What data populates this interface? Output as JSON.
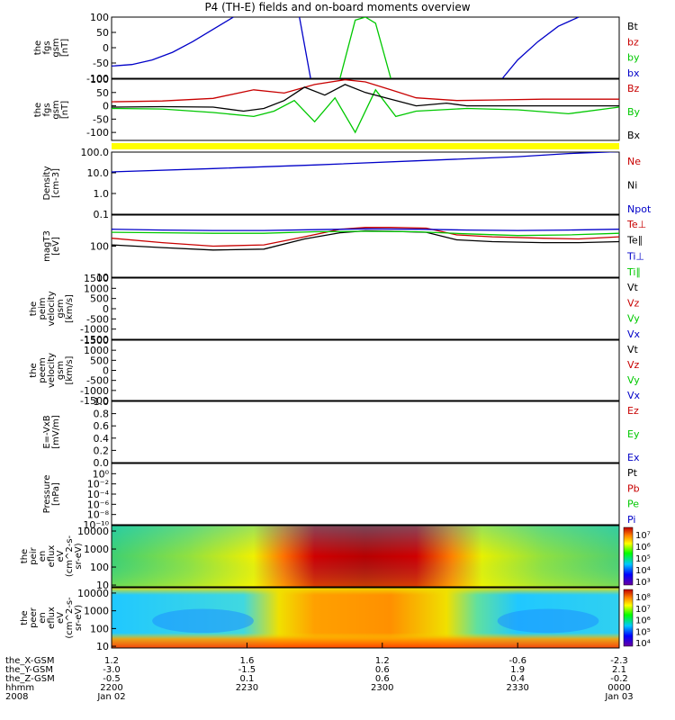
{
  "title": "P4 (TH-E) fields and on-board moments overview",
  "colors": {
    "black": "#000000",
    "red": "#c80000",
    "green": "#00c800",
    "blue": "#0000c8",
    "yellow": "#ffff00"
  },
  "chart_data": [
    {
      "type": "line",
      "id": "fgs",
      "ylabel": [
        "the",
        "fgs",
        "gsm",
        "[nT]"
      ],
      "ylim": [
        -100,
        100
      ],
      "yticks": [
        "100",
        "50",
        "0",
        "-50",
        "-100"
      ],
      "yticks_v": [
        100,
        50,
        0,
        -50,
        -100
      ],
      "legend": [
        {
          "name": "Bt",
          "color": "#000000"
        },
        {
          "name": "bz",
          "color": "#c80000"
        },
        {
          "name": "by",
          "color": "#00c800"
        },
        {
          "name": "bx",
          "color": "#0000c8"
        }
      ],
      "series": [
        {
          "name": "bx",
          "color": "#0000c8",
          "points": [
            [
              0,
              -60
            ],
            [
              0.04,
              -55
            ],
            [
              0.08,
              -40
            ],
            [
              0.12,
              -15
            ],
            [
              0.16,
              20
            ],
            [
              0.2,
              60
            ],
            [
              0.24,
              100
            ]
          ]
        },
        {
          "name": "bx",
          "color": "#0000c8",
          "points": [
            [
              0.37,
              100
            ],
            [
              0.392,
              -100
            ]
          ]
        },
        {
          "name": "by",
          "color": "#00c800",
          "points": [
            [
              0.45,
              -100
            ],
            [
              0.48,
              90
            ],
            [
              0.5,
              100
            ],
            [
              0.52,
              80
            ],
            [
              0.55,
              -100
            ]
          ]
        },
        {
          "name": "bx",
          "color": "#0000c8",
          "points": [
            [
              0.77,
              -100
            ],
            [
              0.8,
              -40
            ],
            [
              0.84,
              20
            ],
            [
              0.88,
              70
            ],
            [
              0.92,
              100
            ]
          ]
        }
      ]
    },
    {
      "type": "line",
      "id": "fgs-gse",
      "ylabel": [
        "the",
        "fgs",
        "gsm",
        "[nT]"
      ],
      "ylim": [
        -130,
        100
      ],
      "yticks": [
        "100",
        "50",
        "0",
        "-50",
        "-100"
      ],
      "yticks_v": [
        100,
        50,
        0,
        -50,
        -100
      ],
      "legend": [
        {
          "name": "Bz",
          "color": "#c80000"
        },
        {
          "name": "By",
          "color": "#00c800"
        },
        {
          "name": "Bx",
          "color": "#000000"
        }
      ],
      "series": [
        {
          "name": "Bz",
          "color": "#c80000",
          "points": [
            [
              0,
              15
            ],
            [
              0.1,
              18
            ],
            [
              0.2,
              28
            ],
            [
              0.28,
              60
            ],
            [
              0.34,
              48
            ],
            [
              0.4,
              80
            ],
            [
              0.46,
              98
            ],
            [
              0.5,
              90
            ],
            [
              0.55,
              60
            ],
            [
              0.6,
              30
            ],
            [
              0.68,
              20
            ],
            [
              0.75,
              22
            ],
            [
              0.85,
              25
            ],
            [
              1,
              25
            ]
          ]
        },
        {
          "name": "By",
          "color": "#00c800",
          "points": [
            [
              0,
              -10
            ],
            [
              0.1,
              -12
            ],
            [
              0.2,
              -25
            ],
            [
              0.28,
              -40
            ],
            [
              0.32,
              -20
            ],
            [
              0.36,
              20
            ],
            [
              0.4,
              -60
            ],
            [
              0.44,
              30
            ],
            [
              0.48,
              -100
            ],
            [
              0.52,
              60
            ],
            [
              0.56,
              -40
            ],
            [
              0.6,
              -20
            ],
            [
              0.7,
              -10
            ],
            [
              0.8,
              -15
            ],
            [
              0.9,
              -30
            ],
            [
              1,
              -5
            ]
          ]
        },
        {
          "name": "Bx",
          "color": "#000000",
          "points": [
            [
              0,
              -5
            ],
            [
              0.1,
              -3
            ],
            [
              0.2,
              -5
            ],
            [
              0.26,
              -20
            ],
            [
              0.3,
              -10
            ],
            [
              0.34,
              20
            ],
            [
              0.38,
              70
            ],
            [
              0.42,
              40
            ],
            [
              0.46,
              80
            ],
            [
              0.5,
              50
            ],
            [
              0.54,
              30
            ],
            [
              0.6,
              0
            ],
            [
              0.66,
              10
            ],
            [
              0.7,
              0
            ],
            [
              0.8,
              0
            ],
            [
              1,
              0
            ]
          ]
        }
      ]
    },
    {
      "type": "line",
      "id": "density",
      "ylabel": [
        "Density",
        "[cm-3]"
      ],
      "log": true,
      "ylim": [
        0.1,
        100
      ],
      "yticks": [
        "100.0",
        "10.0",
        "1.0",
        "0.1"
      ],
      "yticks_v": [
        100,
        10,
        1,
        0.1
      ],
      "legend": [
        {
          "name": "Ne",
          "color": "#c80000"
        },
        {
          "name": "Ni",
          "color": "#000000"
        },
        {
          "name": "Npot",
          "color": "#0000c8"
        }
      ],
      "series": [
        {
          "name": "Npot",
          "color": "#0000c8",
          "points": [
            [
              0,
              11
            ],
            [
              0.2,
              16
            ],
            [
              0.4,
              24
            ],
            [
              0.6,
              38
            ],
            [
              0.8,
              60
            ],
            [
              0.9,
              85
            ],
            [
              1,
              105
            ]
          ]
        }
      ]
    },
    {
      "type": "line",
      "id": "temp",
      "ylabel": [
        "magT3",
        "[eV]"
      ],
      "log": true,
      "ylim": [
        10,
        1000
      ],
      "yticks": [
        "100",
        "10"
      ],
      "yticks_v": [
        100,
        10
      ],
      "legend": [
        {
          "name": "Te⊥",
          "color": "#c80000"
        },
        {
          "name": "Te∥",
          "color": "#000000"
        },
        {
          "name": "Ti⊥",
          "color": "#0000c8"
        },
        {
          "name": "Ti∥",
          "color": "#00c800"
        }
      ],
      "series": [
        {
          "name": "Te⊥",
          "color": "#c80000",
          "points": [
            [
              0,
              180
            ],
            [
              0.1,
              130
            ],
            [
              0.2,
              100
            ],
            [
              0.3,
              110
            ],
            [
              0.38,
              200
            ],
            [
              0.45,
              350
            ],
            [
              0.5,
              400
            ],
            [
              0.55,
              400
            ],
            [
              0.62,
              380
            ],
            [
              0.68,
              230
            ],
            [
              0.75,
              200
            ],
            [
              0.85,
              180
            ],
            [
              0.92,
              170
            ],
            [
              1,
              200
            ]
          ]
        },
        {
          "name": "Te∥",
          "color": "#000000",
          "points": [
            [
              0,
              110
            ],
            [
              0.1,
              90
            ],
            [
              0.2,
              75
            ],
            [
              0.3,
              80
            ],
            [
              0.38,
              170
            ],
            [
              0.45,
              270
            ],
            [
              0.5,
              310
            ],
            [
              0.55,
              300
            ],
            [
              0.62,
              280
            ],
            [
              0.68,
              160
            ],
            [
              0.75,
              140
            ],
            [
              0.85,
              130
            ],
            [
              0.92,
              130
            ],
            [
              1,
              140
            ]
          ]
        },
        {
          "name": "Ti⊥",
          "color": "#0000c8",
          "points": [
            [
              0,
              350
            ],
            [
              0.1,
              330
            ],
            [
              0.2,
              320
            ],
            [
              0.3,
              320
            ],
            [
              0.4,
              340
            ],
            [
              0.5,
              360
            ],
            [
              0.6,
              350
            ],
            [
              0.7,
              330
            ],
            [
              0.8,
              320
            ],
            [
              0.9,
              330
            ],
            [
              1,
              350
            ]
          ]
        },
        {
          "name": "Ti∥",
          "color": "#00c800",
          "points": [
            [
              0,
              280
            ],
            [
              0.1,
              270
            ],
            [
              0.2,
              260
            ],
            [
              0.3,
              260
            ],
            [
              0.4,
              290
            ],
            [
              0.5,
              300
            ],
            [
              0.6,
              290
            ],
            [
              0.7,
              250
            ],
            [
              0.8,
              220
            ],
            [
              0.9,
              230
            ],
            [
              1,
              260
            ]
          ]
        }
      ]
    },
    {
      "type": "line",
      "id": "peim",
      "ylabel": [
        "the",
        "peim",
        "velocity",
        "gsm",
        "[km/s]"
      ],
      "ylim": [
        -1500,
        1500
      ],
      "yticks": [
        "1500",
        "1000",
        "500",
        "0",
        "-500",
        "-1000",
        "-1500"
      ],
      "yticks_v": [
        1500,
        1000,
        500,
        0,
        -500,
        -1000,
        -1500
      ],
      "legend": [
        {
          "name": "Vt",
          "color": "#000000"
        },
        {
          "name": "Vz",
          "color": "#c80000"
        },
        {
          "name": "Vy",
          "color": "#00c800"
        },
        {
          "name": "Vx",
          "color": "#0000c8"
        }
      ],
      "series": []
    },
    {
      "type": "line",
      "id": "peem",
      "ylabel": [
        "the",
        "peem",
        "velocity",
        "gsm",
        "[km/s]"
      ],
      "ylim": [
        -1500,
        1500
      ],
      "yticks": [
        "1500",
        "1000",
        "500",
        "0",
        "-500",
        "-1000",
        "-1500"
      ],
      "yticks_v": [
        1500,
        1000,
        500,
        0,
        -500,
        -1000,
        -1500
      ],
      "legend": [
        {
          "name": "Vt",
          "color": "#000000"
        },
        {
          "name": "Vz",
          "color": "#c80000"
        },
        {
          "name": "Vy",
          "color": "#00c800"
        },
        {
          "name": "Vx",
          "color": "#0000c8"
        }
      ],
      "series": []
    },
    {
      "type": "line",
      "id": "efield",
      "ylabel": [
        "E=-VxB",
        "[mV/m]"
      ],
      "ylim": [
        0,
        1
      ],
      "yticks": [
        "1.0",
        "0.8",
        "0.6",
        "0.4",
        "0.2",
        "0.0"
      ],
      "yticks_v": [
        1,
        0.8,
        0.6,
        0.4,
        0.2,
        0
      ],
      "legend": [
        {
          "name": "Ez",
          "color": "#c80000"
        },
        {
          "name": "Ey",
          "color": "#00c800"
        },
        {
          "name": "Ex",
          "color": "#0000c8"
        }
      ],
      "series": []
    },
    {
      "type": "line",
      "id": "pressure",
      "ylabel": [
        "Pressure",
        "[nPa]"
      ],
      "ylim": [
        -10,
        2
      ],
      "yticks": [
        "10⁰",
        "10⁻²",
        "10⁻⁴",
        "10⁻⁶",
        "10⁻⁸",
        "10⁻¹⁰"
      ],
      "yticks_v": [
        0,
        -2,
        -4,
        -6,
        -8,
        -10
      ],
      "legend": [
        {
          "name": "Pt",
          "color": "#000000"
        },
        {
          "name": "Pb",
          "color": "#c80000"
        },
        {
          "name": "Pe",
          "color": "#00c800"
        },
        {
          "name": "Pi",
          "color": "#0000c8"
        }
      ],
      "series": []
    },
    {
      "type": "heatmap",
      "id": "peir",
      "ylabel": [
        "the",
        "peir",
        "en",
        "eflux",
        "eV",
        "(cm^2-s-",
        "sr-eV)"
      ],
      "log": true,
      "ylim": [
        8,
        20000
      ],
      "yticks": [
        "10000",
        "1000",
        "100",
        "10"
      ],
      "yticks_v": [
        10000,
        1000,
        100,
        10
      ],
      "colorbar": {
        "ticks": [
          "10⁷",
          "10⁶",
          "10⁵",
          "10⁴",
          "10³"
        ]
      }
    },
    {
      "type": "heatmap",
      "id": "peer",
      "ylabel": [
        "the",
        "peer",
        "en",
        "eflux",
        "eV",
        "(cm^2-s-",
        "sr-eV)"
      ],
      "log": true,
      "ylim": [
        8,
        20000
      ],
      "yticks": [
        "10000",
        "1000",
        "100",
        "10"
      ],
      "yticks_v": [
        10000,
        1000,
        100,
        10
      ],
      "colorbar": {
        "ticks": [
          "10⁸",
          "10⁷",
          "10⁶",
          "10⁵",
          "10⁴"
        ]
      }
    }
  ],
  "xaxis": {
    "row_labels": [
      "the_X-GSM",
      "the_Y-GSM",
      "the_Z-GSM",
      "hhmm",
      "2008"
    ],
    "columns": [
      {
        "pos": 0,
        "vals": [
          "1.2",
          "-3.0",
          "-0.5",
          "2200",
          "Jan 02"
        ]
      },
      {
        "pos": 0.2667,
        "vals": [
          "1.6",
          "-1.5",
          "0.1",
          "2230",
          ""
        ]
      },
      {
        "pos": 0.5333,
        "vals": [
          "1.2",
          "0.6",
          "0.6",
          "2300",
          ""
        ]
      },
      {
        "pos": 0.8,
        "vals": [
          "-0.6",
          "1.9",
          "0.4",
          "2330",
          ""
        ]
      },
      {
        "pos": 1,
        "vals": [
          "-2.3",
          "2.1",
          "-0.2",
          "0000",
          "Jan 03"
        ]
      }
    ]
  }
}
